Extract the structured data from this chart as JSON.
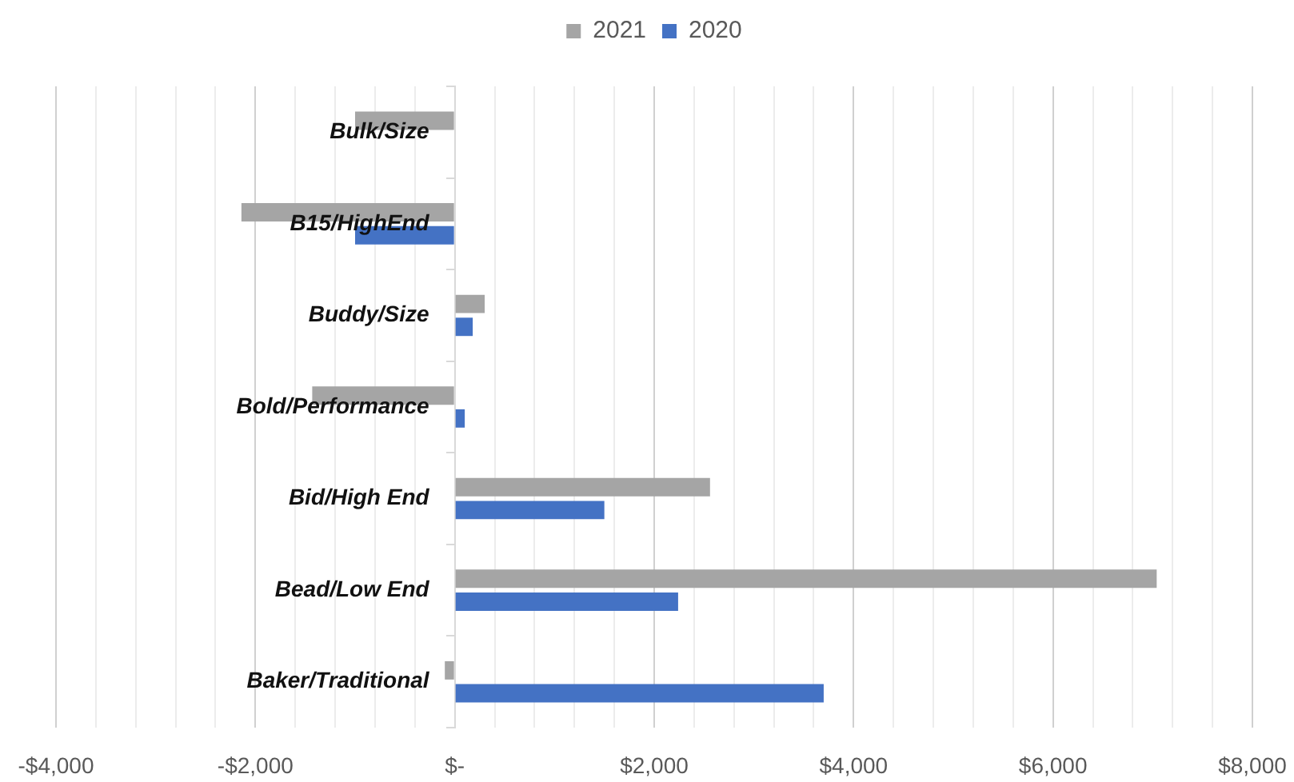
{
  "chart_data": {
    "type": "bar",
    "orientation": "horizontal",
    "categories": [
      "Bulk/Size",
      "B15/HighEnd",
      "Buddy/Size",
      "Bold/Performance",
      "Bid/High End",
      "Bead/Low End",
      "Baker/Traditional"
    ],
    "series": [
      {
        "name": "2021",
        "color": "#a5a5a5",
        "values": [
          -1000,
          -2140,
          300,
          -1430,
          2560,
          7040,
          -100
        ]
      },
      {
        "name": "2020",
        "color": "#4472c4",
        "values": [
          null,
          -1000,
          180,
          100,
          1500,
          2240,
          3700
        ]
      }
    ],
    "xlim": [
      -4000,
      8000
    ],
    "xticks": [
      {
        "value": -4000,
        "label": "-$4,000"
      },
      {
        "value": -3600,
        "label": null
      },
      {
        "value": -3200,
        "label": null
      },
      {
        "value": -2800,
        "label": null
      },
      {
        "value": -2400,
        "label": null
      },
      {
        "value": -2000,
        "label": "-$2,000"
      },
      {
        "value": -1600,
        "label": null
      },
      {
        "value": -1200,
        "label": null
      },
      {
        "value": -800,
        "label": null
      },
      {
        "value": -400,
        "label": null
      },
      {
        "value": 0,
        "label": "$-"
      },
      {
        "value": 400,
        "label": null
      },
      {
        "value": 800,
        "label": null
      },
      {
        "value": 1200,
        "label": null
      },
      {
        "value": 1600,
        "label": null
      },
      {
        "value": 2000,
        "label": "$2,000"
      },
      {
        "value": 2400,
        "label": null
      },
      {
        "value": 2800,
        "label": null
      },
      {
        "value": 3200,
        "label": null
      },
      {
        "value": 3600,
        "label": null
      },
      {
        "value": 4000,
        "label": "$4,000"
      },
      {
        "value": 4400,
        "label": null
      },
      {
        "value": 4800,
        "label": null
      },
      {
        "value": 5200,
        "label": null
      },
      {
        "value": 5600,
        "label": null
      },
      {
        "value": 6000,
        "label": "$6,000"
      },
      {
        "value": 6400,
        "label": null
      },
      {
        "value": 6800,
        "label": null
      },
      {
        "value": 7200,
        "label": null
      },
      {
        "value": 7600,
        "label": null
      },
      {
        "value": 8000,
        "label": "$8,000"
      }
    ],
    "grid": "x",
    "legend": "top"
  }
}
